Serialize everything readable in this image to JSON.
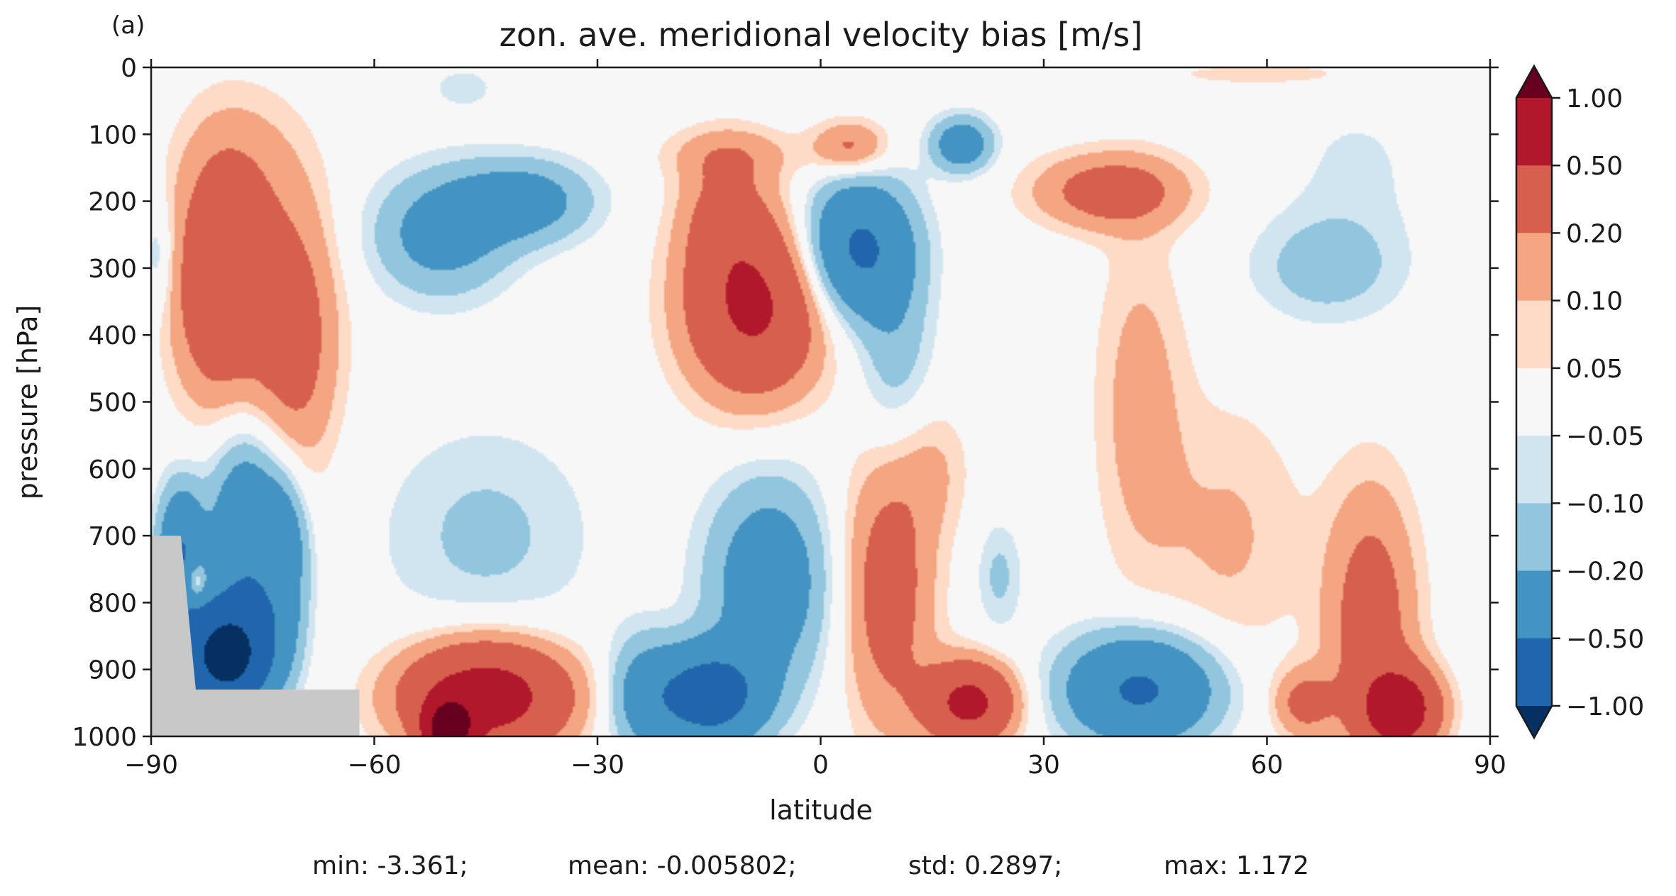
{
  "panel_label": "(a)",
  "stats": {
    "min": "min: -3.361;",
    "mean": "mean: -0.005802;",
    "std": "std: 0.2897;",
    "max": "max: 1.172"
  },
  "chart_data": {
    "type": "heatmap",
    "subtype": "filled-contour",
    "title": "zon. ave. meridional velocity bias [m/s]",
    "xlabel": "latitude",
    "ylabel": "pressure [hPa]",
    "xlim": [
      -90,
      90
    ],
    "ylim": [
      1000,
      0
    ],
    "x_ticks": [
      "−90",
      "−60",
      "−30",
      "0",
      "30",
      "60",
      "90"
    ],
    "x_tick_values": [
      -90,
      -60,
      -30,
      0,
      30,
      60,
      90
    ],
    "y_ticks": [
      "0",
      "100",
      "200",
      "300",
      "400",
      "500",
      "600",
      "700",
      "800",
      "900",
      "1000"
    ],
    "y_tick_values": [
      0,
      100,
      200,
      300,
      400,
      500,
      600,
      700,
      800,
      900,
      1000
    ],
    "colorbar": {
      "ticks": [
        "1.00",
        "0.50",
        "0.20",
        "0.10",
        "0.05",
        "−0.05",
        "−0.10",
        "−0.20",
        "−0.50",
        "−1.00"
      ],
      "levels": [
        1.0,
        0.5,
        0.2,
        0.1,
        0.05,
        -0.05,
        -0.1,
        -0.2,
        -0.5,
        -1.0
      ],
      "bands": [
        "#b2182b",
        "#d6604d",
        "#f4a582",
        "#fddbc7",
        "#f7f7f7",
        "#d1e5f0",
        "#92c5de",
        "#4393c3",
        "#2166ac"
      ],
      "extend_max": "#67001f",
      "extend_min": "#053061",
      "mask_color": "#c8c8c8"
    },
    "grid": false,
    "features": [
      {
        "lat": -81,
        "p": 330,
        "v": 0.4,
        "rlat": 6,
        "rp": 170
      },
      {
        "lat": -71,
        "p": 400,
        "v": 0.3,
        "rlat": 6,
        "rp": 200
      },
      {
        "lat": -78,
        "p": 150,
        "v": 0.12,
        "rlat": 8,
        "rp": 120
      },
      {
        "lat": -51,
        "p": 250,
        "v": -0.28,
        "rlat": 9,
        "rp": 90
      },
      {
        "lat": -40,
        "p": 200,
        "v": -0.3,
        "rlat": 9,
        "rp": 60
      },
      {
        "lat": -48,
        "p": 30,
        "v": -0.06,
        "rlat": 7,
        "rp": 50
      },
      {
        "lat": -45,
        "p": 700,
        "v": -0.12,
        "rlat": 14,
        "rp": 160
      },
      {
        "lat": -45,
        "p": 940,
        "v": 0.7,
        "rlat": 11,
        "rp": 80
      },
      {
        "lat": -50,
        "p": 990,
        "v": 1.25,
        "rlat": 3,
        "rp": 40
      },
      {
        "lat": -9,
        "p": 360,
        "v": 0.55,
        "rlat": 9,
        "rp": 130
      },
      {
        "lat": -13,
        "p": 220,
        "v": 0.2,
        "rlat": 6,
        "rp": 100
      },
      {
        "lat": -12,
        "p": 130,
        "v": 0.12,
        "rlat": 9,
        "rp": 40
      },
      {
        "lat": 4,
        "p": 120,
        "v": 0.25,
        "rlat": 5,
        "rp": 40
      },
      {
        "lat": 5,
        "p": 270,
        "v": -0.55,
        "rlat": 7,
        "rp": 100
      },
      {
        "lat": 10,
        "p": 430,
        "v": -0.15,
        "rlat": 5,
        "rp": 150
      },
      {
        "lat": 19,
        "p": 115,
        "v": -0.35,
        "rlat": 4,
        "rp": 40
      },
      {
        "lat": 39,
        "p": 185,
        "v": 0.3,
        "rlat": 10,
        "rp": 55
      },
      {
        "lat": 43,
        "p": 500,
        "v": 0.14,
        "rlat": 6,
        "rp": 250
      },
      {
        "lat": 55,
        "p": 700,
        "v": 0.11,
        "rlat": 10,
        "rp": 200
      },
      {
        "lat": 68,
        "p": 300,
        "v": -0.15,
        "rlat": 10,
        "rp": 80
      },
      {
        "lat": 72,
        "p": 150,
        "v": -0.06,
        "rlat": 10,
        "rp": 120
      },
      {
        "lat": 60,
        "p": 10,
        "v": 0.1,
        "rlat": 12,
        "rp": 15
      },
      {
        "lat": -7,
        "p": 770,
        "v": -0.35,
        "rlat": 8,
        "rp": 150
      },
      {
        "lat": -15,
        "p": 940,
        "v": -0.7,
        "rlat": 7,
        "rp": 70
      },
      {
        "lat": -24,
        "p": 940,
        "v": -0.25,
        "rlat": 5,
        "rp": 90
      },
      {
        "lat": 9,
        "p": 780,
        "v": 0.3,
        "rlat": 6,
        "rp": 200
      },
      {
        "lat": 15,
        "p": 600,
        "v": 0.1,
        "rlat": 5,
        "rp": 100
      },
      {
        "lat": 20,
        "p": 950,
        "v": 0.6,
        "rlat": 6,
        "rp": 60
      },
      {
        "lat": 24,
        "p": 760,
        "v": -0.12,
        "rlat": 3,
        "rp": 80
      },
      {
        "lat": 43,
        "p": 930,
        "v": -0.55,
        "rlat": 10,
        "rp": 80
      },
      {
        "lat": 74,
        "p": 830,
        "v": 0.3,
        "rlat": 6,
        "rp": 200
      },
      {
        "lat": 78,
        "p": 960,
        "v": 0.7,
        "rlat": 5,
        "rp": 60
      },
      {
        "lat": 65,
        "p": 950,
        "v": 0.25,
        "rlat": 4,
        "rp": 50
      },
      {
        "lat": -86,
        "p": 730,
        "v": -0.5,
        "rlat": 3,
        "rp": 100
      },
      {
        "lat": -80,
        "p": 880,
        "v": -1.2,
        "rlat": 6,
        "rp": 80
      },
      {
        "lat": -77,
        "p": 700,
        "v": -0.45,
        "rlat": 5,
        "rp": 150
      },
      {
        "lat": -72,
        "p": 740,
        "v": -0.3,
        "rlat": 3,
        "rp": 120
      },
      {
        "lat": -84,
        "p": 770,
        "v": 0.35,
        "rlat": 1.5,
        "rp": 30
      },
      {
        "lat": -72,
        "p": 770,
        "v": 0.2,
        "rlat": 1.5,
        "rp": 25
      },
      {
        "lat": -89,
        "p": 280,
        "v": -0.12,
        "rlat": 2,
        "rp": 80
      }
    ],
    "mask": [
      [
        -90,
        700
      ],
      [
        -86,
        700
      ],
      [
        -84,
        930
      ],
      [
        -62,
        930
      ],
      [
        -62,
        1000
      ],
      [
        -90,
        1000
      ]
    ]
  }
}
